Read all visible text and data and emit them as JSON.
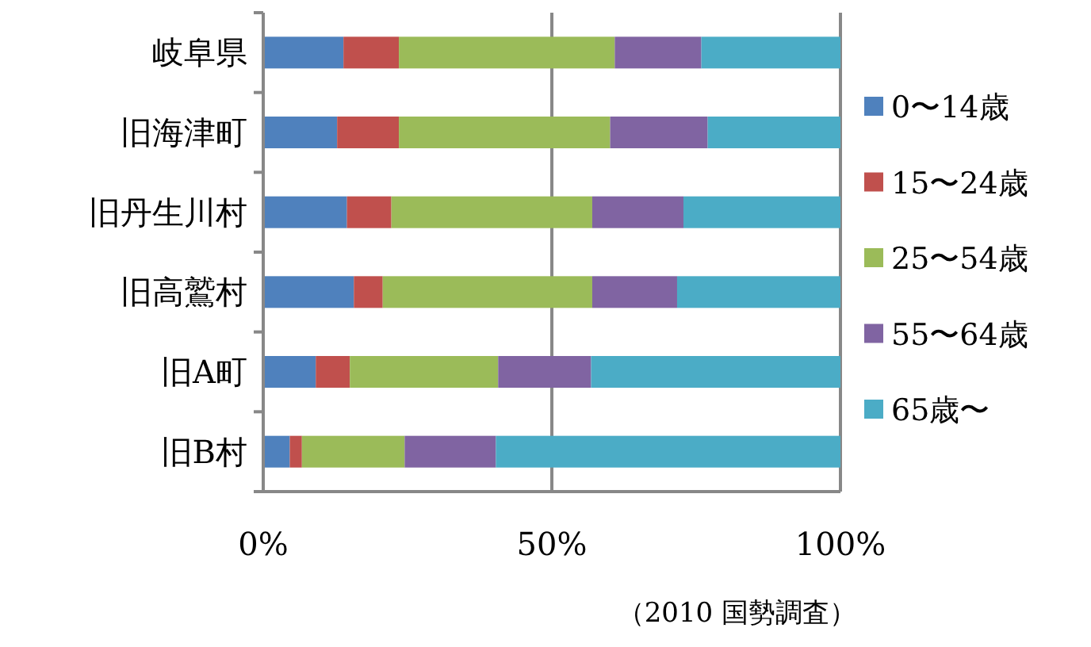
{
  "chart_data": {
    "type": "bar",
    "orientation": "horizontal",
    "stacked": true,
    "categories": [
      "岐阜県",
      "旧海津町",
      "旧丹生川村",
      "旧高鷲村",
      "旧A町",
      "旧B村"
    ],
    "series": [
      {
        "name": "0〜14歳",
        "color": "#4f81bd",
        "values": [
          13.9,
          12.8,
          14.5,
          15.7,
          9.1,
          4.6
        ]
      },
      {
        "name": "15〜24歳",
        "color": "#c0504d",
        "values": [
          9.6,
          10.7,
          7.7,
          5.0,
          5.9,
          2.1
        ]
      },
      {
        "name": "25〜54歳",
        "color": "#9bbb59",
        "values": [
          37.4,
          36.6,
          34.8,
          36.3,
          25.7,
          17.8
        ]
      },
      {
        "name": "55〜64歳",
        "color": "#8064a2",
        "values": [
          15.0,
          16.9,
          15.8,
          14.7,
          16.1,
          15.8
        ]
      },
      {
        "name": "65歳〜",
        "color": "#4bacc6",
        "values": [
          24.1,
          23.0,
          27.2,
          28.3,
          43.2,
          59.7
        ]
      }
    ],
    "xlim": [
      0,
      100
    ],
    "xticks": [
      {
        "value": 0,
        "label": "0%"
      },
      {
        "value": 50,
        "label": "50%"
      },
      {
        "value": 100,
        "label": "100%"
      }
    ],
    "grid": "x",
    "legend": "right",
    "annotations": [
      "（2010 国勢調査）"
    ]
  }
}
